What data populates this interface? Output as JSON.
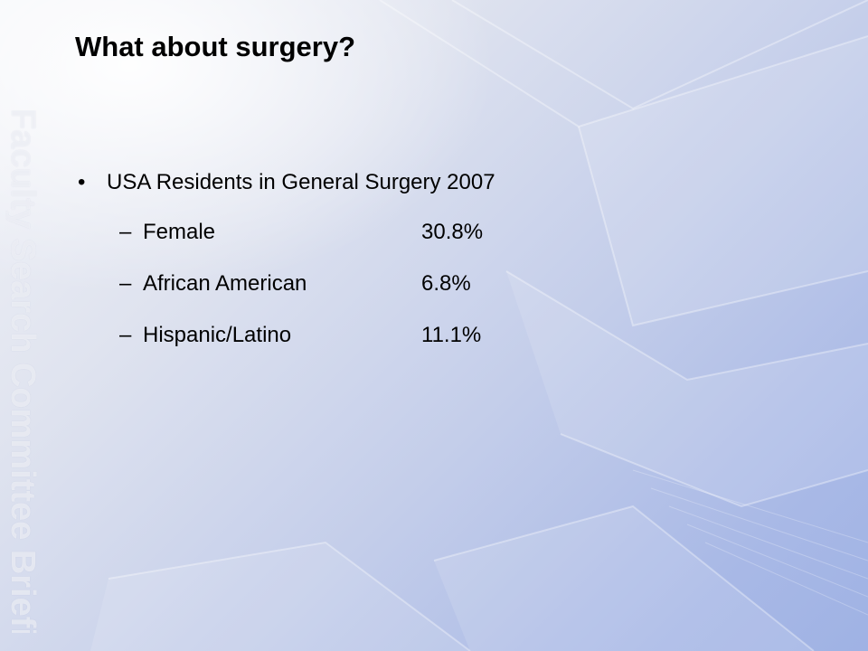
{
  "slide": {
    "title": "What about surgery?",
    "watermark": "Faculty Search Committee Briefing",
    "bullet": {
      "marker": "•",
      "text": "USA Residents in General Surgery 2007"
    },
    "sub_items": [
      {
        "marker": "–",
        "label": "Female",
        "value": "30.8%"
      },
      {
        "marker": "–",
        "label": "African American",
        "value": "6.8%"
      },
      {
        "marker": "–",
        "label": "Hispanic/Latino",
        "value": "11.1%"
      }
    ]
  },
  "colors": {
    "background_light": "#f3f4f8",
    "background_blue": "#9fb2e4",
    "text": "#000000",
    "watermark": "#ffffff"
  }
}
